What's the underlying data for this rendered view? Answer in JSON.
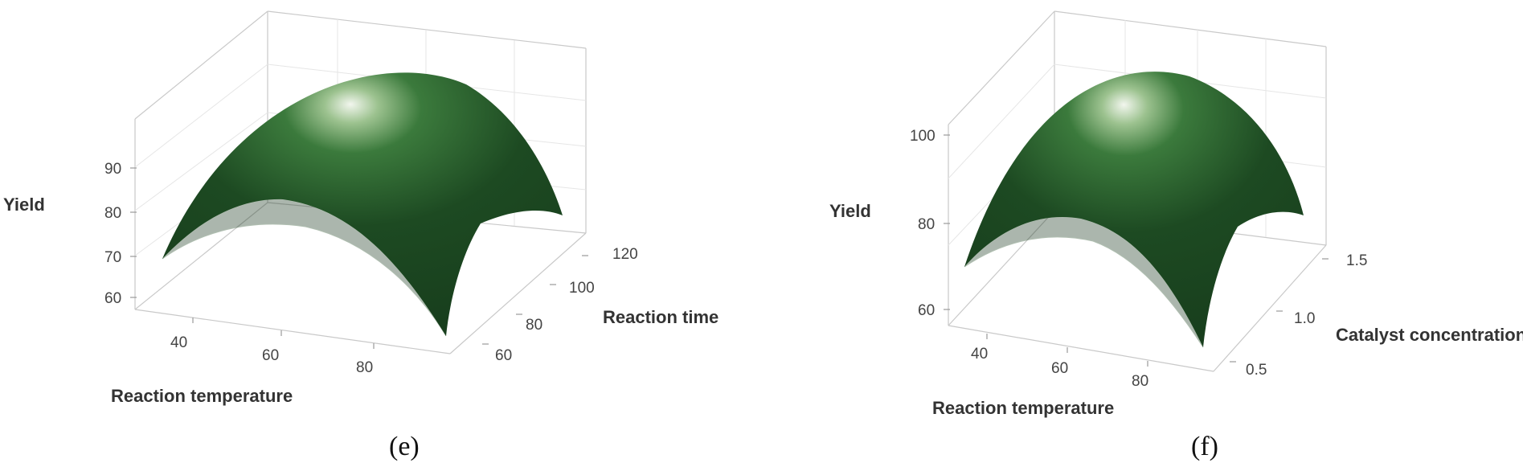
{
  "chart_data": [
    {
      "type": "surface",
      "panel_label": "(e)",
      "xlabel": "Reaction temperature",
      "ylabel": "Reaction time",
      "zlabel": "Yield",
      "x_ticks": [
        "40",
        "60",
        "80"
      ],
      "y_ticks": [
        "60",
        "80",
        "100",
        "120"
      ],
      "z_ticks": [
        "60",
        "70",
        "80",
        "90"
      ],
      "xlim": [
        30,
        90
      ],
      "ylim": [
        50,
        120
      ],
      "zlim": [
        57,
        98
      ],
      "surface": {
        "shape": "inverted paraboloid",
        "peak": {
          "x": 60,
          "y": 90,
          "z": 97
        },
        "corners": [
          {
            "x": 30,
            "y": 50,
            "z": 62
          },
          {
            "x": 90,
            "y": 50,
            "z": 58
          },
          {
            "x": 30,
            "y": 120,
            "z": 66
          },
          {
            "x": 90,
            "y": 120,
            "z": 70
          }
        ]
      },
      "surface_color": "#1f4a22",
      "grid": true
    },
    {
      "type": "surface",
      "panel_label": "(f)",
      "xlabel": "Reaction temperature",
      "ylabel": "Catalyst concentration",
      "zlabel": "Yield",
      "x_ticks": [
        "40",
        "60",
        "80"
      ],
      "y_ticks": [
        "0.5",
        "1.0",
        "1.5"
      ],
      "z_ticks": [
        "60",
        "80",
        "100"
      ],
      "xlim": [
        30,
        90
      ],
      "ylim": [
        0.3,
        1.7
      ],
      "zlim": [
        55,
        110
      ],
      "surface": {
        "shape": "inverted paraboloid",
        "peak": {
          "x": 60,
          "y": 1.0,
          "z": 108
        },
        "corners": [
          {
            "x": 30,
            "y": 0.3,
            "z": 66
          },
          {
            "x": 90,
            "y": 0.3,
            "z": 58
          },
          {
            "x": 30,
            "y": 1.7,
            "z": 70
          },
          {
            "x": 90,
            "y": 1.7,
            "z": 72
          }
        ]
      },
      "surface_color": "#1f4a22",
      "grid": true
    }
  ]
}
